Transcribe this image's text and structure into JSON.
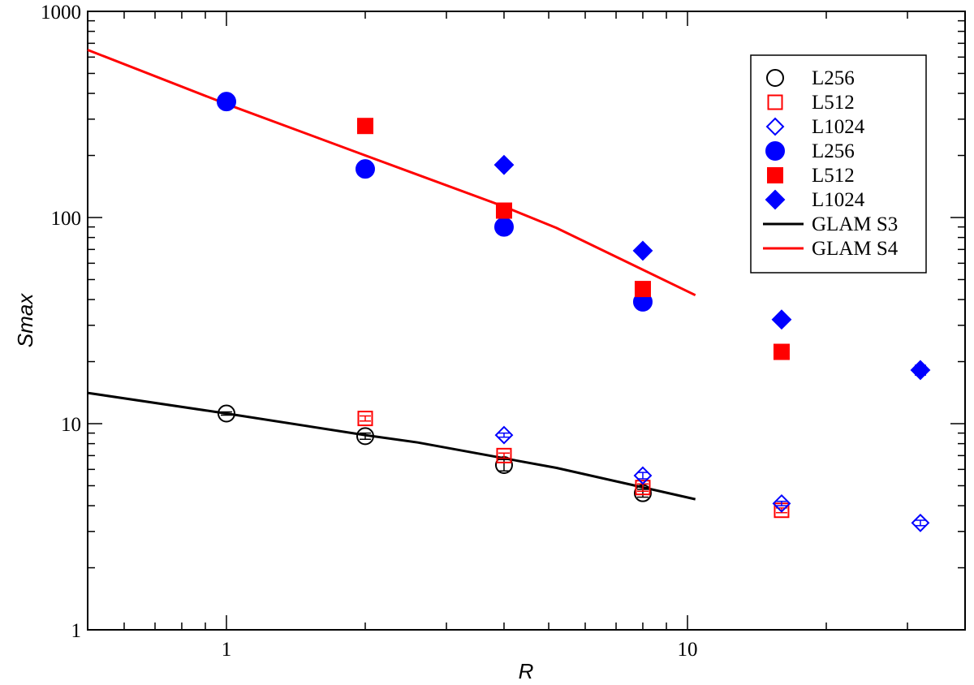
{
  "chart_data": {
    "type": "scatter",
    "title": "",
    "xlabel": "R",
    "ylabel": "Smax",
    "xscale": "log",
    "yscale": "log",
    "xlim": [
      0.5,
      40
    ],
    "ylim": [
      1,
      1000
    ],
    "xticks": [
      {
        "value": 1,
        "label": "1"
      },
      {
        "value": 10,
        "label": "10"
      }
    ],
    "yticks": [
      {
        "value": 1,
        "label": "1"
      },
      {
        "value": 10,
        "label": "10"
      },
      {
        "value": 100,
        "label": "100"
      },
      {
        "value": 1000,
        "label": "1000"
      }
    ],
    "grid": false,
    "legend_position": "top-right",
    "series": [
      {
        "name": "L256",
        "kind": "markers",
        "marker": "circle",
        "filled": false,
        "color": "#000000",
        "x": [
          1,
          2,
          4,
          8
        ],
        "y": [
          11.2,
          8.7,
          6.3,
          4.6
        ],
        "yerr": [
          0.2,
          0.3,
          0.4,
          0.2
        ]
      },
      {
        "name": "L512",
        "kind": "markers",
        "marker": "square",
        "filled": false,
        "color": "#ff0000",
        "x": [
          2,
          4,
          8,
          16
        ],
        "y": [
          10.6,
          7.0,
          4.9,
          3.8
        ],
        "yerr": [
          0.3,
          0.2,
          0.2,
          0.1
        ]
      },
      {
        "name": "L1024",
        "kind": "markers",
        "marker": "diamond",
        "filled": false,
        "color": "#0000ff",
        "x": [
          4,
          8,
          16,
          32
        ],
        "y": [
          8.8,
          5.6,
          4.1,
          3.3
        ],
        "yerr": [
          0.2,
          0.2,
          0.1,
          0.1
        ]
      },
      {
        "name": "L256",
        "kind": "markers",
        "marker": "circle",
        "filled": true,
        "color": "#0000ff",
        "x": [
          1,
          2,
          4,
          8
        ],
        "y": [
          365,
          172,
          90,
          39
        ],
        "yerr": [
          10,
          6,
          5,
          3
        ]
      },
      {
        "name": "L512",
        "kind": "markers",
        "marker": "square",
        "filled": true,
        "color": "#ff0000",
        "x": [
          2,
          4,
          8,
          16
        ],
        "y": [
          278,
          108,
          45,
          22.3
        ],
        "yerr": [
          10,
          5,
          2,
          1
        ]
      },
      {
        "name": "L1024",
        "kind": "markers",
        "marker": "diamond",
        "filled": true,
        "color": "#0000ff",
        "x": [
          4,
          8,
          16,
          32
        ],
        "y": [
          180,
          69,
          32,
          18.2
        ],
        "yerr": [
          5,
          2,
          1,
          1
        ]
      },
      {
        "name": "GLAM S3",
        "kind": "line",
        "color": "#000000",
        "x": [
          0.5,
          1,
          2,
          2.6,
          5.2,
          10.4
        ],
        "y": [
          14.1,
          11.2,
          8.8,
          8.1,
          6.1,
          4.3
        ]
      },
      {
        "name": "GLAM S4",
        "kind": "line",
        "color": "#ff0000",
        "x": [
          0.5,
          1,
          2,
          4,
          5.2,
          10.4
        ],
        "y": [
          650,
          355,
          200,
          113,
          89,
          42
        ]
      }
    ]
  }
}
